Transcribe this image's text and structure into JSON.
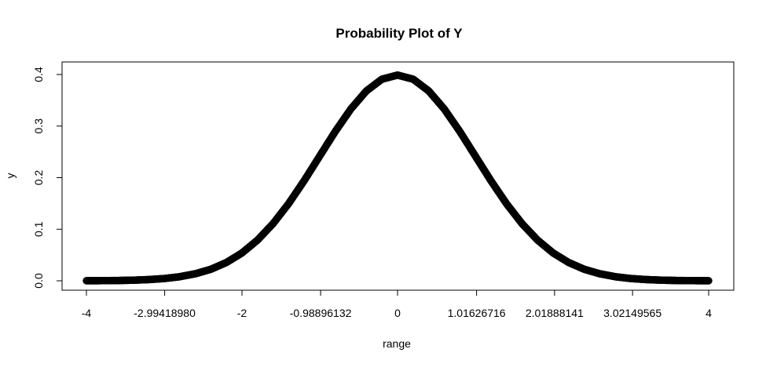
{
  "chart_data": {
    "type": "scatter",
    "title": "Probability Plot of Y",
    "xlabel": "range",
    "ylabel": "y",
    "xlim": [
      -4,
      4
    ],
    "ylim": [
      0,
      0.4
    ],
    "grid": false,
    "legend": "none",
    "x_tick_labels": [
      {
        "value": -4,
        "label": "-4"
      },
      {
        "value": -2.9941898,
        "label": "-2.99418980"
      },
      {
        "value": -2,
        "label": "-2"
      },
      {
        "value": -0.98896132,
        "label": "-0.98896132"
      },
      {
        "value": 0,
        "label": "0"
      },
      {
        "value": 1.01626716,
        "label": "1.01626716"
      },
      {
        "value": 2.01888141,
        "label": "2.01888141"
      },
      {
        "value": 3.02149565,
        "label": "3.02149565"
      },
      {
        "value": 4,
        "label": "4"
      }
    ],
    "y_tick_labels": [
      {
        "value": 0.0,
        "label": "0.0"
      },
      {
        "value": 0.1,
        "label": "0.1"
      },
      {
        "value": 0.2,
        "label": "0.2"
      },
      {
        "value": 0.3,
        "label": "0.3"
      },
      {
        "value": 0.4,
        "label": "0.4"
      }
    ],
    "series": [
      {
        "marker": "open-circle",
        "color": "#000000",
        "x": [
          -4.0,
          -3.8,
          -3.6,
          -3.4,
          -3.2,
          -3.0,
          -2.8,
          -2.6,
          -2.4,
          -2.2,
          -2.0,
          -1.8,
          -1.6,
          -1.4,
          -1.2,
          -1.0,
          -0.8,
          -0.6,
          -0.4,
          -0.2,
          0.0,
          0.2,
          0.4,
          0.6,
          0.8,
          1.0,
          1.2,
          1.4,
          1.6,
          1.8,
          2.0,
          2.2,
          2.4,
          2.6,
          2.8,
          3.0,
          3.2,
          3.4,
          3.6,
          3.8,
          4.0
        ],
        "y": [
          0.0001,
          0.0003,
          0.0006,
          0.0012,
          0.0024,
          0.0044,
          0.0079,
          0.0136,
          0.0224,
          0.0355,
          0.054,
          0.079,
          0.1109,
          0.1497,
          0.1942,
          0.242,
          0.2897,
          0.3332,
          0.3683,
          0.391,
          0.3989,
          0.391,
          0.3683,
          0.3332,
          0.2897,
          0.242,
          0.1942,
          0.1497,
          0.1109,
          0.079,
          0.054,
          0.0355,
          0.0224,
          0.0136,
          0.0079,
          0.0044,
          0.0024,
          0.0012,
          0.0006,
          0.0003,
          0.0001
        ]
      }
    ]
  }
}
